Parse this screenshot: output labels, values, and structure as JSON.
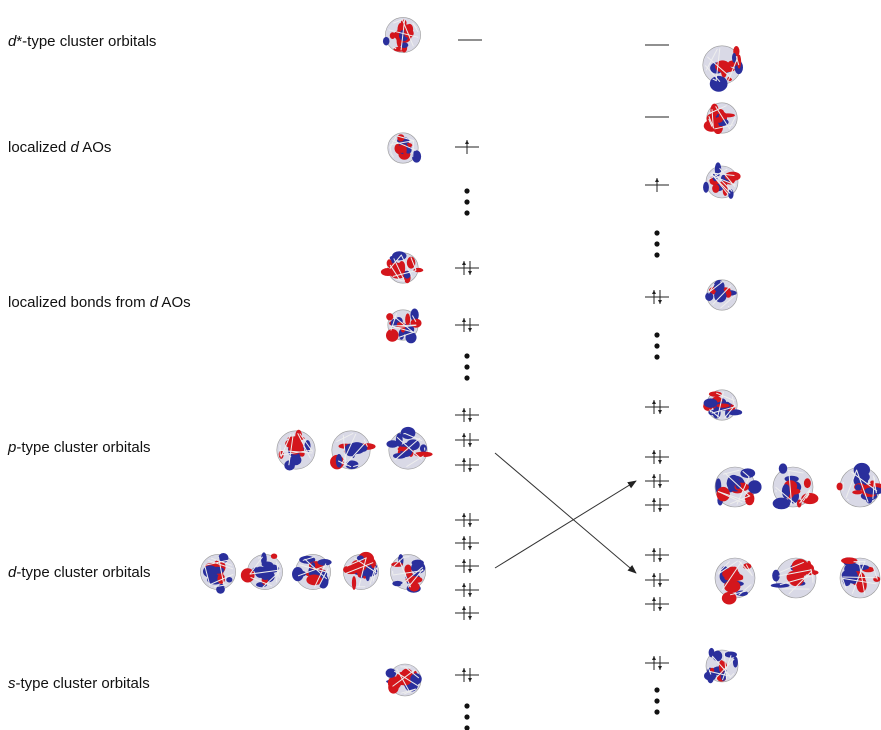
{
  "labels": [
    {
      "parts": [
        {
          "text": "d",
          "italic": true
        },
        {
          "text": "*-type cluster orbitals",
          "italic": false
        }
      ]
    },
    {
      "parts": [
        {
          "text": "localized ",
          "italic": false
        },
        {
          "text": "d",
          "italic": true
        },
        {
          "text": " AOs",
          "italic": false
        }
      ]
    },
    {
      "parts": [
        {
          "text": "localized bonds from ",
          "italic": false
        },
        {
          "text": "d",
          "italic": true
        },
        {
          "text": " AOs",
          "italic": false
        }
      ]
    },
    {
      "parts": [
        {
          "text": "p",
          "italic": true
        },
        {
          "text": "-type cluster orbitals",
          "italic": false
        }
      ]
    },
    {
      "parts": [
        {
          "text": "d",
          "italic": true
        },
        {
          "text": "-type cluster orbitals",
          "italic": false
        }
      ]
    },
    {
      "parts": [
        {
          "text": "s",
          "italic": true
        },
        {
          "text": "-type cluster orbitals",
          "italic": false
        }
      ]
    }
  ]
}
